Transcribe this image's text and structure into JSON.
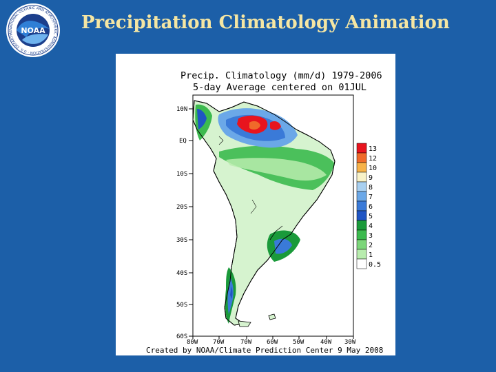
{
  "slide": {
    "title": "Precipitation Climatology Animation",
    "background_color": "#1c5fa8",
    "title_color": "#f5e6a3"
  },
  "logo": {
    "center_text": "NOAA",
    "ring_text": "NATIONAL OCEANIC AND ATMOSPHERIC ADMINISTRATION · U.S. DEPARTMENT OF COMMERCE"
  },
  "map": {
    "title_line1": "Precip. Climatology (mm/d) 1979-2006",
    "title_line2": "5-day Average centered on 01JUL",
    "credit": "Created by NOAA/Climate Prediction Center 9 May 2008",
    "lat_labels": [
      "10N",
      "EQ",
      "10S",
      "20S",
      "30S",
      "40S",
      "50S",
      "60S"
    ],
    "lon_labels": [
      "80W",
      "70W",
      "70W",
      "60W",
      "50W",
      "40W",
      "30W"
    ],
    "colorbar": {
      "labels": [
        "13",
        "12",
        "10",
        "9",
        "8",
        "7",
        "6",
        "5",
        "4",
        "3",
        "2",
        "1",
        "0.5"
      ],
      "colors": [
        "#e8141e",
        "#f06a2a",
        "#f7b34a",
        "#f8f2c8",
        "#a9d0f0",
        "#6ba8e8",
        "#3a7ad8",
        "#1f55c4",
        "#1a9a3a",
        "#3cba4e",
        "#7cd67a",
        "#b8ecae",
        "#ffffff"
      ]
    }
  }
}
